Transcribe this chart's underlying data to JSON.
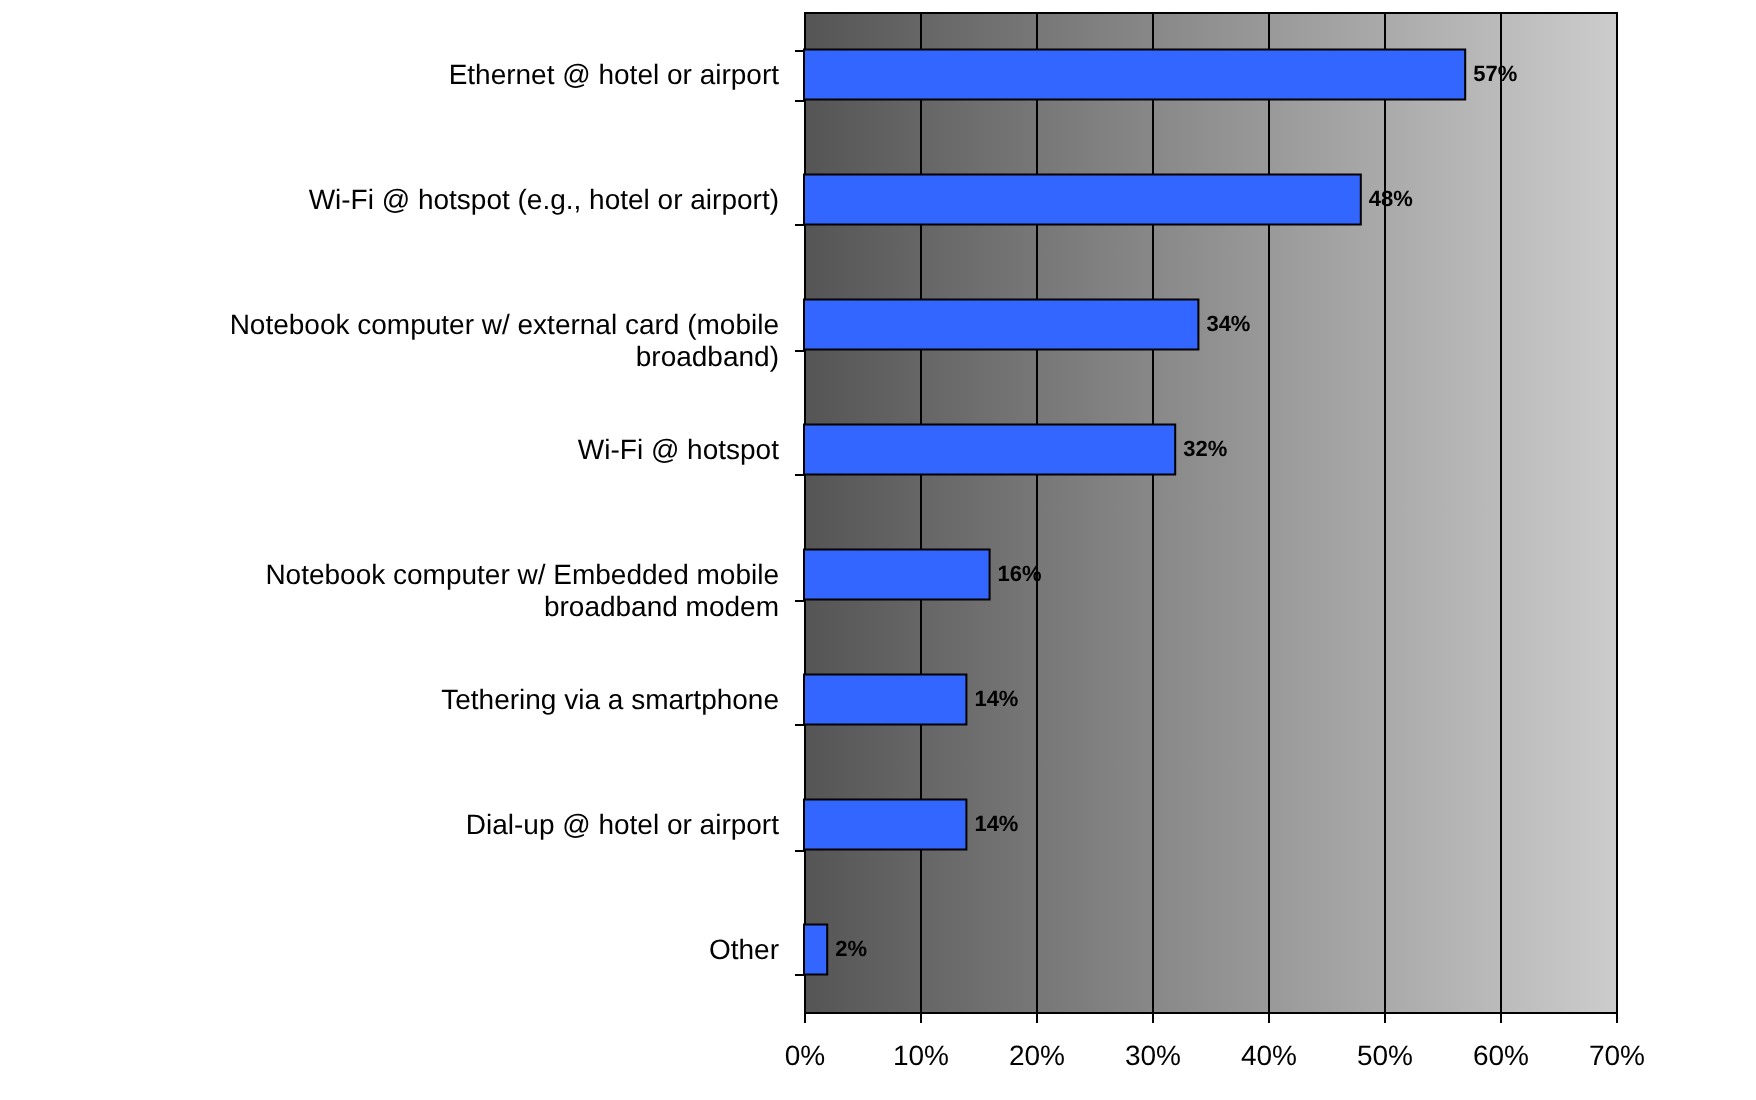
{
  "chart_data": {
    "type": "bar",
    "orientation": "horizontal",
    "categories": [
      "Ethernet @ hotel or airport",
      "Wi-Fi @ hotspot (e.g., hotel or airport)",
      "Notebook computer w/ external card (mobile broadband)",
      "Wi-Fi @ hotspot",
      "Notebook computer w/ Embedded mobile broadband modem",
      "Tethering via a smartphone",
      "Dial-up @ hotel or airport",
      "Other"
    ],
    "values": [
      57,
      48,
      34,
      32,
      16,
      14,
      14,
      2
    ],
    "value_labels": [
      "57%",
      "48%",
      "34%",
      "32%",
      "16%",
      "14%",
      "14%",
      "2%"
    ],
    "color": "#3366ff",
    "xlim": [
      0,
      70
    ],
    "xticks": [
      {
        "value": 0,
        "label": "0%"
      },
      {
        "value": 10,
        "label": "10%"
      },
      {
        "value": 20,
        "label": "20%"
      },
      {
        "value": 30,
        "label": "30%"
      },
      {
        "value": 40,
        "label": "40%"
      },
      {
        "value": 50,
        "label": "50%"
      },
      {
        "value": 60,
        "label": "60%"
      },
      {
        "value": 70,
        "label": "70%"
      }
    ],
    "grid": "x"
  }
}
